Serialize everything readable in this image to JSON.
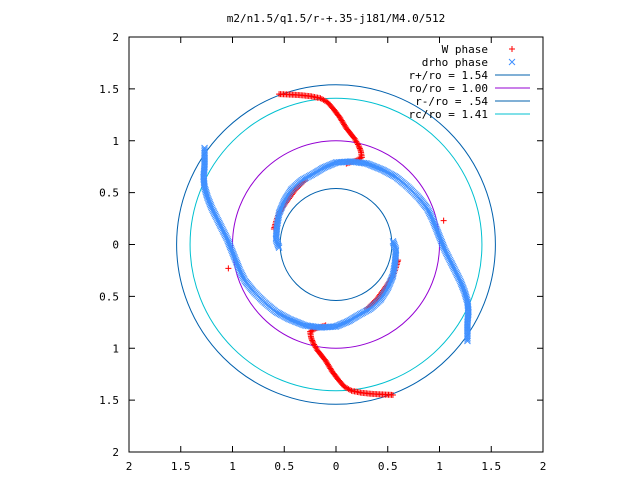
{
  "chart_data": {
    "type": "scatter",
    "title": "m2/n1.5/q1.5/r-+.35-j181/M4.0/512",
    "xlabel": "",
    "ylabel": "",
    "xlim": [
      -2,
      2
    ],
    "ylim": [
      -2,
      2
    ],
    "grid": false,
    "legend_position": "top-right",
    "x_tick_labels": [
      "2",
      "1.5",
      "1",
      "0.5",
      "0",
      "0.5",
      "1",
      "1.5",
      "2"
    ],
    "y_tick_labels": [
      "2",
      "1.5",
      "1",
      "0.5",
      "0",
      "0.5",
      "1",
      "1.5",
      "2"
    ],
    "circles": [
      {
        "name": "r+/ro = 1.54",
        "radius": 1.54,
        "color": "#0060ad"
      },
      {
        "name": "ro/ro = 1.00",
        "radius": 1.0,
        "color": "#9400d3"
      },
      {
        "name": "r-/ro = .54",
        "radius": 0.54,
        "color": "#0060ad"
      },
      {
        "name": "rc/ro = 1.41",
        "radius": 1.41,
        "color": "#00c0d0"
      }
    ],
    "series": [
      {
        "name": "W phase",
        "marker": "plus",
        "color": "#ff0000",
        "points": [
          [
            -0.55,
            1.45
          ],
          [
            -0.45,
            1.445
          ],
          [
            -0.35,
            1.44
          ],
          [
            -0.25,
            1.43
          ],
          [
            -0.15,
            1.41
          ],
          [
            -0.08,
            1.37
          ],
          [
            -0.02,
            1.3
          ],
          [
            0.04,
            1.22
          ],
          [
            0.1,
            1.12
          ],
          [
            0.18,
            1.02
          ],
          [
            0.22,
            0.95
          ],
          [
            0.24,
            0.9
          ],
          [
            0.25,
            0.84
          ],
          [
            0.2,
            0.81
          ],
          [
            0.1,
            0.78
          ],
          [
            0.55,
            -1.45
          ],
          [
            0.45,
            -1.445
          ],
          [
            0.35,
            -1.44
          ],
          [
            0.25,
            -1.43
          ],
          [
            0.15,
            -1.41
          ],
          [
            0.08,
            -1.37
          ],
          [
            0.02,
            -1.3
          ],
          [
            -0.04,
            -1.22
          ],
          [
            -0.1,
            -1.12
          ],
          [
            -0.18,
            -1.02
          ],
          [
            -0.22,
            -0.95
          ],
          [
            -0.24,
            -0.9
          ],
          [
            -0.25,
            -0.84
          ],
          [
            -0.2,
            -0.81
          ],
          [
            -0.1,
            -0.78
          ],
          [
            -0.6,
            0.15
          ],
          [
            -0.56,
            0.28
          ],
          [
            -0.5,
            0.38
          ],
          [
            -0.4,
            0.52
          ],
          [
            -0.3,
            0.62
          ],
          [
            0.6,
            -0.15
          ],
          [
            0.56,
            -0.28
          ],
          [
            0.5,
            -0.38
          ],
          [
            0.4,
            -0.52
          ],
          [
            0.3,
            -0.62
          ],
          [
            -1.04,
            -0.23
          ],
          [
            1.04,
            0.23
          ]
        ]
      },
      {
        "name": "drho phase",
        "marker": "cross",
        "color": "#4090ff",
        "points": [
          [
            -1.27,
            0.93
          ],
          [
            -1.27,
            0.85
          ],
          [
            -1.27,
            0.75
          ],
          [
            -1.28,
            0.65
          ],
          [
            -1.27,
            0.55
          ],
          [
            -1.24,
            0.45
          ],
          [
            -1.2,
            0.35
          ],
          [
            -1.15,
            0.25
          ],
          [
            -1.1,
            0.15
          ],
          [
            -1.05,
            0.05
          ],
          [
            -1.01,
            -0.05
          ],
          [
            -0.97,
            -0.15
          ],
          [
            -0.93,
            -0.25
          ],
          [
            -0.88,
            -0.35
          ],
          [
            -0.8,
            -0.45
          ],
          [
            -0.7,
            -0.55
          ],
          [
            -0.58,
            -0.65
          ],
          [
            -0.45,
            -0.72
          ],
          [
            -0.3,
            -0.78
          ],
          [
            -0.15,
            -0.8
          ],
          [
            0.0,
            -0.79
          ],
          [
            0.12,
            -0.74
          ],
          [
            0.22,
            -0.68
          ],
          [
            0.33,
            -0.62
          ],
          [
            0.43,
            -0.53
          ],
          [
            0.5,
            -0.42
          ],
          [
            0.55,
            -0.3
          ],
          [
            0.57,
            -0.18
          ],
          [
            0.58,
            -0.05
          ],
          [
            0.55,
            0.03
          ],
          [
            1.27,
            -0.93
          ],
          [
            1.27,
            -0.85
          ],
          [
            1.27,
            -0.75
          ],
          [
            1.28,
            -0.65
          ],
          [
            1.27,
            -0.55
          ],
          [
            1.24,
            -0.45
          ],
          [
            1.2,
            -0.35
          ],
          [
            1.15,
            -0.25
          ],
          [
            1.1,
            -0.15
          ],
          [
            1.05,
            -0.05
          ],
          [
            1.01,
            0.05
          ],
          [
            0.97,
            0.15
          ],
          [
            0.93,
            0.25
          ],
          [
            0.88,
            0.35
          ],
          [
            0.8,
            0.45
          ],
          [
            0.7,
            0.55
          ],
          [
            0.58,
            0.65
          ],
          [
            0.45,
            0.72
          ],
          [
            0.3,
            0.78
          ],
          [
            0.15,
            0.8
          ],
          [
            0.0,
            0.79
          ],
          [
            -0.12,
            0.74
          ],
          [
            -0.22,
            0.68
          ],
          [
            -0.33,
            0.62
          ],
          [
            -0.43,
            0.53
          ],
          [
            -0.5,
            0.42
          ],
          [
            -0.55,
            0.3
          ],
          [
            -0.57,
            0.18
          ],
          [
            -0.58,
            0.05
          ],
          [
            -0.55,
            -0.03
          ]
        ]
      }
    ]
  }
}
